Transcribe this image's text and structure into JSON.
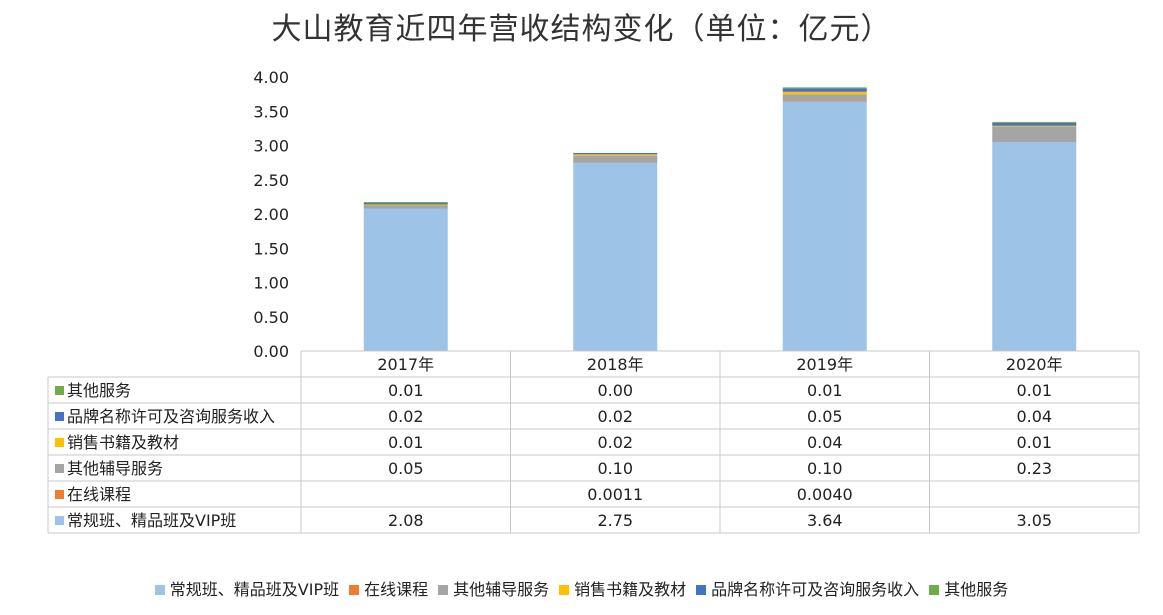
{
  "chart_data": {
    "type": "bar",
    "stacked": true,
    "title": "大山教育近四年营收结构变化（单位：亿元）",
    "categories": [
      "2017年",
      "2018年",
      "2019年",
      "2020年"
    ],
    "ylim": [
      0,
      4
    ],
    "yticks": [
      "0.00",
      "0.50",
      "1.00",
      "1.50",
      "2.00",
      "2.50",
      "3.00",
      "3.50",
      "4.00"
    ],
    "grid": false,
    "legend_position": "bottom",
    "data_table": true,
    "series": [
      {
        "name": "常规班、精品班及VIP班",
        "color": "#9dc3e6",
        "values": [
          2.08,
          2.75,
          3.64,
          3.05
        ],
        "labels": [
          "2.08",
          "2.75",
          "3.64",
          "3.05"
        ]
      },
      {
        "name": "在线课程",
        "color": "#ed7d31",
        "values": [
          null,
          0.0011,
          0.004,
          null
        ],
        "labels": [
          "",
          "0.0011",
          "0.0040",
          ""
        ]
      },
      {
        "name": "其他辅导服务",
        "color": "#a5a5a5",
        "values": [
          0.05,
          0.1,
          0.1,
          0.23
        ],
        "labels": [
          "0.05",
          "0.10",
          "0.10",
          "0.23"
        ]
      },
      {
        "name": "销售书籍及教材",
        "color": "#ffc000",
        "values": [
          0.01,
          0.02,
          0.04,
          0.01
        ],
        "labels": [
          "0.01",
          "0.02",
          "0.04",
          "0.01"
        ]
      },
      {
        "name": "品牌名称许可及咨询服务收入",
        "color": "#4472c4",
        "values": [
          0.02,
          0.02,
          0.05,
          0.04
        ],
        "labels": [
          "0.02",
          "0.02",
          "0.05",
          "0.04"
        ]
      },
      {
        "name": "其他服务",
        "color": "#70ad47",
        "values": [
          0.01,
          0.0,
          0.01,
          0.01
        ],
        "labels": [
          "0.01",
          "0.00",
          "0.01",
          "0.01"
        ]
      }
    ]
  }
}
